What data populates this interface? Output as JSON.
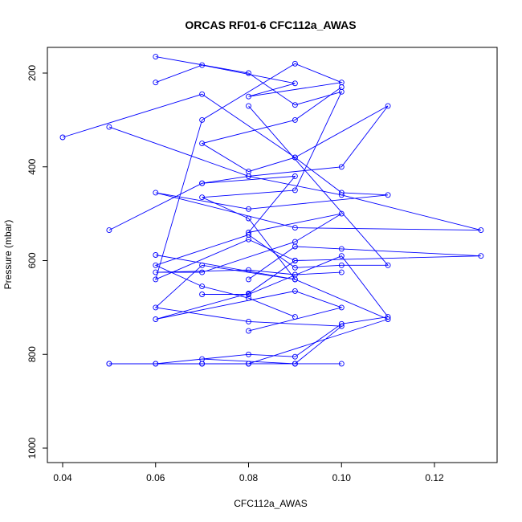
{
  "chart_data": {
    "type": "line",
    "title": "ORCAS RF01-6 CFC112a_AWAS",
    "xlabel": "CFC112a_AWAS",
    "ylabel": "Pressure (mbar)",
    "xlim": [
      0.035,
      0.135
    ],
    "ylim": [
      1030,
      150
    ],
    "y_reversed": true,
    "grid": false,
    "x_ticks": [
      "0.04",
      "0.06",
      "0.08",
      "0.10",
      "0.12"
    ],
    "x_tick_values": [
      0.04,
      0.06,
      0.08,
      0.1,
      0.12
    ],
    "y_ticks": [
      "200",
      "400",
      "600",
      "800",
      "1000"
    ],
    "y_tick_values": [
      200,
      400,
      600,
      800,
      1000
    ],
    "series_color": "#0000ff",
    "series": [
      {
        "x": [
          0.07,
          0.08,
          0.09,
          0.1,
          0.09,
          0.08,
          0.07,
          0.06,
          0.05
        ],
        "y": [
          820,
          820,
          820,
          820,
          820,
          820,
          820,
          820,
          820
        ]
      },
      {
        "x": [
          0.05,
          0.08,
          0.11,
          0.09,
          0.07,
          0.06,
          0.08,
          0.1,
          0.09,
          0.07
        ],
        "y": [
          820,
          820,
          725,
          640,
          610,
          700,
          730,
          740,
          820,
          810
        ]
      },
      {
        "x": [
          0.04,
          0.07,
          0.09,
          0.1,
          0.11,
          0.08,
          0.06,
          0.09,
          0.13,
          0.1,
          0.08,
          0.07
        ],
        "y": [
          337,
          245,
          380,
          455,
          460,
          490,
          455,
          530,
          535,
          460,
          420,
          435
        ]
      },
      {
        "x": [
          0.05,
          0.07,
          0.09,
          0.08,
          0.1,
          0.09,
          0.07,
          0.06,
          0.08,
          0.09,
          0.1
        ],
        "y": [
          535,
          435,
          420,
          540,
          500,
          560,
          625,
          625,
          620,
          630,
          625
        ]
      },
      {
        "x": [
          0.05,
          0.08,
          0.1,
          0.11,
          0.09,
          0.08,
          0.07,
          0.09,
          0.1
        ],
        "y": [
          315,
          420,
          400,
          270,
          380,
          410,
          350,
          300,
          230
        ]
      },
      {
        "x": [
          0.06,
          0.07,
          0.09,
          0.08,
          0.1,
          0.09,
          0.07,
          0.06,
          0.08,
          0.09
        ],
        "y": [
          220,
          183,
          222,
          250,
          220,
          180,
          300,
          640,
          555,
          600
        ]
      },
      {
        "x": [
          0.08,
          0.09,
          0.1,
          0.13,
          0.09,
          0.08,
          0.06,
          0.09,
          0.1,
          0.08
        ],
        "y": [
          640,
          570,
          575,
          590,
          600,
          670,
          725,
          665,
          700,
          750
        ]
      },
      {
        "x": [
          0.09,
          0.08,
          0.07,
          0.06,
          0.08,
          0.09,
          0.1,
          0.11,
          0.08
        ],
        "y": [
          720,
          680,
          655,
          610,
          545,
          615,
          610,
          610,
          270
        ]
      },
      {
        "x": [
          0.06,
          0.08,
          0.09,
          0.1,
          0.09,
          0.07,
          0.08,
          0.09,
          0.06
        ],
        "y": [
          165,
          200,
          268,
          240,
          450,
          465,
          510,
          640,
          588
        ]
      },
      {
        "x": [
          0.07,
          0.08,
          0.1,
          0.11,
          0.1,
          0.09,
          0.08,
          0.06,
          0.07
        ],
        "y": [
          672,
          672,
          590,
          720,
          735,
          805,
          800,
          820,
          820
        ]
      }
    ]
  }
}
